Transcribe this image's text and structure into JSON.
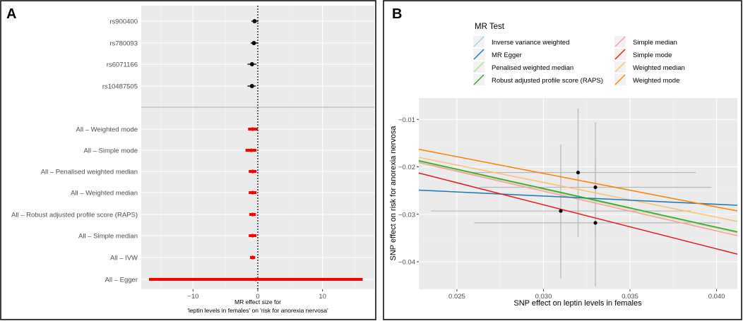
{
  "chart_data": [
    {
      "panel_label": "A",
      "type": "forest",
      "xlabel_line1": "MR effect size for",
      "xlabel_line2": "'leptin levels in females' on 'risk for anorexia nervosa'",
      "xlim": [
        -18,
        18
      ],
      "xticks": [
        -10,
        0,
        10
      ],
      "xtick_labels": [
        "−10",
        "0",
        "10"
      ],
      "reference_line": 0,
      "rows": [
        {
          "label": "rs900400",
          "estimate": -0.5,
          "lower": -1.0,
          "upper": 0.1,
          "color": "#000000"
        },
        {
          "label": "rs780093",
          "estimate": -0.6,
          "lower": -1.1,
          "upper": 0.0,
          "color": "#000000"
        },
        {
          "label": "rs6071166",
          "estimate": -0.9,
          "lower": -1.6,
          "upper": -0.2,
          "color": "#000000"
        },
        {
          "label": "rs10487505",
          "estimate": -0.9,
          "lower": -1.6,
          "upper": -0.3,
          "color": "#000000"
        },
        {
          "label": "All – Weighted mode",
          "estimate": -0.8,
          "lower": -1.5,
          "upper": 0.0,
          "color": "#ff0000"
        },
        {
          "label": "All – Simple mode",
          "estimate": -1.0,
          "lower": -1.9,
          "upper": -0.2,
          "color": "#ff0000"
        },
        {
          "label": "All – Penalised weighted median",
          "estimate": -0.8,
          "lower": -1.4,
          "upper": -0.2,
          "color": "#ff0000"
        },
        {
          "label": "All – Weighted median",
          "estimate": -0.8,
          "lower": -1.4,
          "upper": -0.2,
          "color": "#ff0000"
        },
        {
          "label": "All – Robust adjusted profile score (RAPS)",
          "estimate": -0.8,
          "lower": -1.3,
          "upper": -0.3,
          "color": "#ff0000"
        },
        {
          "label": "All – Simple median",
          "estimate": -0.8,
          "lower": -1.4,
          "upper": -0.2,
          "color": "#ff0000"
        },
        {
          "label": "All – IVW",
          "estimate": -0.8,
          "lower": -1.2,
          "upper": -0.4,
          "color": "#ff0000"
        },
        {
          "label": "All – Egger",
          "estimate": -0.3,
          "lower": -16.8,
          "upper": 16.2,
          "color": "#ff0000"
        }
      ]
    },
    {
      "panel_label": "B",
      "type": "scatter",
      "xlabel": "SNP effect on leptin levels in females",
      "ylabel": "SNP effect on risk for anorexia nervosa",
      "xlim": [
        0.0228,
        0.0412
      ],
      "ylim": [
        -0.0458,
        -0.0055
      ],
      "xticks": [
        0.025,
        0.03,
        0.035,
        0.04
      ],
      "xtick_labels": [
        "0.025",
        "0.030",
        "0.035",
        "0.040"
      ],
      "yticks": [
        -0.01,
        -0.02,
        -0.03,
        -0.04
      ],
      "ytick_labels": [
        "−0.01",
        "−0.02",
        "−0.03",
        "−0.04"
      ],
      "points": [
        {
          "x": 0.032,
          "y": -0.0212,
          "x_lo": 0.0253,
          "x_hi": 0.0388,
          "y_lo": -0.0348,
          "y_hi": -0.0077
        },
        {
          "x": 0.033,
          "y": -0.0243,
          "x_lo": 0.0263,
          "x_hi": 0.0397,
          "y_lo": -0.0345,
          "y_hi": -0.0106
        },
        {
          "x": 0.031,
          "y": -0.0293,
          "x_lo": 0.0235,
          "x_hi": 0.0385,
          "y_lo": -0.0435,
          "y_hi": -0.0153
        },
        {
          "x": 0.033,
          "y": -0.0318,
          "x_lo": 0.026,
          "x_hi": 0.0402,
          "y_lo": -0.0452,
          "y_hi": -0.0186
        }
      ],
      "legend_title": "MR Test",
      "lines": [
        {
          "name": "Inverse variance weighted",
          "color": "#a6cee3",
          "y_at_xmin": -0.0188,
          "y_at_xmax": -0.0338
        },
        {
          "name": "MR Egger",
          "color": "#1f78b4",
          "y_at_xmin": -0.0249,
          "y_at_xmax": -0.0281
        },
        {
          "name": "Penalised weighted median",
          "color": "#b2df8a",
          "y_at_xmin": -0.0189,
          "y_at_xmax": -0.0339
        },
        {
          "name": "Robust adjusted profile score (RAPS)",
          "color": "#33a02c",
          "y_at_xmin": -0.0187,
          "y_at_xmax": -0.0337
        },
        {
          "name": "Simple median",
          "color": "#fb9a99",
          "y_at_xmin": -0.0191,
          "y_at_xmax": -0.0345
        },
        {
          "name": "Simple mode",
          "color": "#e31a1c",
          "y_at_xmin": -0.0213,
          "y_at_xmax": -0.0384
        },
        {
          "name": "Weighted median",
          "color": "#fdbf6f",
          "y_at_xmin": -0.018,
          "y_at_xmax": -0.0315
        },
        {
          "name": "Weighted mode",
          "color": "#ff7f00",
          "y_at_xmin": -0.0163,
          "y_at_xmax": -0.0293
        }
      ]
    }
  ]
}
